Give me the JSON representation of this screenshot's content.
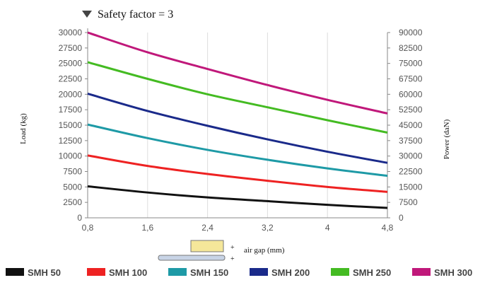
{
  "chart_data": {
    "type": "line",
    "title": "Safety factor = 3",
    "xlabel": "air gap (mm)",
    "ylabel": "Load (kg)",
    "y2label": "Power (daN)",
    "x_ticks": [
      "0,8",
      "1,6",
      "2,4",
      "3,2",
      "4",
      "4,8"
    ],
    "y_ticks": [
      "0",
      "2500",
      "5000",
      "7500",
      "10000",
      "12500",
      "15000",
      "17500",
      "20000",
      "22500",
      "25000",
      "27500",
      "30000"
    ],
    "y2_ticks": [
      "0",
      "7500",
      "15000",
      "22500",
      "30000",
      "37500",
      "45000",
      "52500",
      "60000",
      "67500",
      "75000",
      "82500",
      "90000"
    ],
    "xlim": [
      0.8,
      4.8
    ],
    "ylim": [
      0,
      30000
    ],
    "y2lim": [
      0,
      90000
    ],
    "grid": true,
    "legend_position": "bottom",
    "x": [
      0.8,
      1.6,
      2.4,
      3.2,
      4.0,
      4.8
    ],
    "series": [
      {
        "name": "SMH 50",
        "color": "#111111",
        "values": [
          5100,
          4100,
          3300,
          2700,
          2100,
          1600
        ]
      },
      {
        "name": "SMH 100",
        "color": "#ee2222",
        "values": [
          10100,
          8400,
          7100,
          6000,
          5000,
          4200
        ]
      },
      {
        "name": "SMH 150",
        "color": "#1e9aa6",
        "values": [
          15100,
          12900,
          11000,
          9400,
          8000,
          6800
        ]
      },
      {
        "name": "SMH 200",
        "color": "#1a2a8a",
        "values": [
          20100,
          17300,
          14900,
          12700,
          10700,
          8900
        ]
      },
      {
        "name": "SMH 250",
        "color": "#44bb22",
        "values": [
          25200,
          22500,
          20000,
          17900,
          15800,
          13800
        ]
      },
      {
        "name": "SMH 300",
        "color": "#c0187a",
        "values": [
          30000,
          26800,
          24100,
          21500,
          19100,
          16900
        ]
      }
    ]
  },
  "icons": {
    "title_marker": "triangle-down-icon",
    "air_gap_diagram": "magnet-plate-icon",
    "legend_swatch": "swatch-icon"
  },
  "diagram": {
    "marker_top": "+",
    "marker_bottom": "+"
  }
}
